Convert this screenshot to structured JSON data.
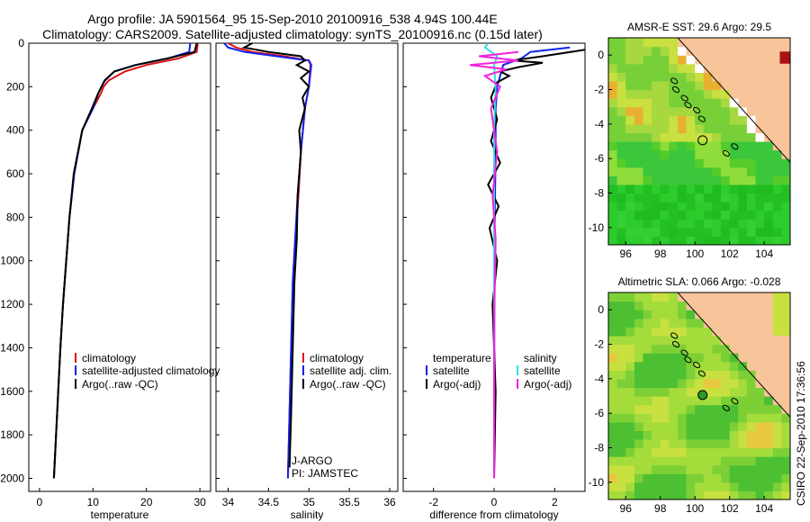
{
  "header": {
    "title_line1": "Argo profile: JA 5901564_95 15-Sep-2010 20100916_538 4.94S 100.44E",
    "title_line2": "Climatology: CARS2009. Satellite-adjusted climatology: synTS_20100916.nc (0.15d later)"
  },
  "side_stamp": "CSIRO 22-Sep-2010 17:36:56",
  "colors": {
    "climatology": "#dd1111",
    "satellite": "#1122ee",
    "argo": "#000000",
    "argo_adj": "#ee22dd",
    "sal_sat": "#33dddd",
    "land": "#f8c49a"
  },
  "chart_data": [
    {
      "type": "line",
      "name": "temperature-panel",
      "xlabel": "temperature",
      "ylabel": "",
      "xlim": [
        -2,
        32
      ],
      "ylim": [
        2060,
        0
      ],
      "xticks": [
        "0",
        "10",
        "20",
        "30"
      ],
      "xtick_values": [
        0,
        10,
        20,
        30
      ],
      "yticks": [
        "0",
        "200",
        "400",
        "600",
        "800",
        "1000",
        "1200",
        "1400",
        "1600",
        "1800",
        "2000"
      ],
      "ytick_values": [
        0,
        200,
        400,
        600,
        800,
        1000,
        1200,
        1400,
        1600,
        1800,
        2000
      ],
      "legend": [
        "climatology",
        "satellite-adjusted climatology",
        "Argo(..raw -QC)"
      ],
      "series": [
        {
          "name": "climatology",
          "color": "#dd1111",
          "x": [
            29.6,
            29.4,
            26,
            20,
            16,
            13,
            12,
            11.5,
            10,
            8,
            6.5,
            5.6,
            5,
            4.4,
            3.9,
            3.3,
            2.7
          ],
          "y": [
            0,
            40,
            70,
            100,
            130,
            170,
            200,
            230,
            300,
            400,
            600,
            800,
            1000,
            1200,
            1400,
            1700,
            2000
          ]
        },
        {
          "name": "satellite-adjusted climatology",
          "color": "#1122ee",
          "x": [
            28.2,
            28,
            24,
            18,
            14,
            12.3,
            11.6,
            11,
            10,
            8,
            6.5,
            5.6,
            5,
            4.4,
            3.9,
            3.3,
            2.7
          ],
          "y": [
            0,
            40,
            70,
            100,
            130,
            170,
            200,
            230,
            300,
            400,
            600,
            800,
            1000,
            1200,
            1400,
            1700,
            2000
          ]
        },
        {
          "name": "Argo(..raw -QC)",
          "color": "#000000",
          "x": [
            29.4,
            29,
            24,
            18,
            14,
            12.2,
            11.6,
            11,
            9.8,
            8,
            6.4,
            5.6,
            5,
            4.4,
            3.9,
            3.3,
            2.7
          ],
          "y": [
            0,
            40,
            70,
            100,
            130,
            170,
            200,
            230,
            300,
            400,
            600,
            800,
            1000,
            1200,
            1400,
            1700,
            2000
          ]
        }
      ]
    },
    {
      "type": "line",
      "name": "salinity-panel",
      "xlabel": "salinity",
      "ylabel": "",
      "xlim": [
        33.85,
        36.1
      ],
      "ylim": [
        2060,
        0
      ],
      "xticks": [
        "34",
        "34.5",
        "35",
        "35.5",
        "36"
      ],
      "xtick_values": [
        34,
        34.5,
        35,
        35.5,
        36
      ],
      "legend": [
        "climatology",
        "satellite adj. clim.",
        "Argo(..raw -QC)"
      ],
      "annotations": [
        "J-ARGO",
        "PI: JAMSTEC"
      ],
      "series": [
        {
          "name": "climatology",
          "color": "#dd1111",
          "x": [
            34.0,
            34.1,
            34.3,
            34.7,
            35.0,
            35.02,
            35.0,
            34.95,
            34.9,
            34.87,
            34.83,
            34.8,
            34.78,
            34.76,
            34.74
          ],
          "y": [
            0,
            20,
            40,
            60,
            80,
            100,
            200,
            300,
            500,
            700,
            900,
            1100,
            1400,
            1700,
            2000
          ]
        },
        {
          "name": "satellite adj. clim.",
          "color": "#1122ee",
          "x": [
            33.95,
            34.0,
            34.2,
            34.6,
            35.0,
            35.03,
            35.0,
            34.95,
            34.9,
            34.86,
            34.83,
            34.8,
            34.78,
            34.76,
            34.74
          ],
          "y": [
            0,
            20,
            40,
            60,
            80,
            100,
            200,
            300,
            500,
            700,
            900,
            1100,
            1400,
            1700,
            2000
          ]
        },
        {
          "name": "Argo(..raw -QC)",
          "color": "#000000",
          "x": [
            34.3,
            34.2,
            34.5,
            34.9,
            34.95,
            34.85,
            35.0,
            34.9,
            35.0,
            34.92,
            34.95,
            34.88,
            34.9,
            34.86,
            34.85,
            34.82,
            34.8,
            34.78,
            34.76
          ],
          "y": [
            0,
            20,
            40,
            60,
            80,
            100,
            130,
            160,
            200,
            250,
            300,
            400,
            500,
            700,
            900,
            1100,
            1400,
            1700,
            1950
          ]
        }
      ]
    },
    {
      "type": "line",
      "name": "difference-panel",
      "xlabel": "difference from climatology",
      "ylabel": "",
      "xlim": [
        -3,
        3
      ],
      "ylim": [
        2060,
        0
      ],
      "xticks": [
        "-2",
        "0",
        "2"
      ],
      "xtick_values": [
        -2,
        0,
        2
      ],
      "legend": [
        "temperature",
        "satellite",
        "Argo(-adj)",
        "salinity",
        "satellite",
        "Argo(-adj)"
      ],
      "series": [
        {
          "name": "temperature satellite",
          "color": "#1122ee",
          "x": [
            2.5,
            1.2,
            0.9,
            0.3,
            0.2,
            0.1,
            0.05,
            0.05,
            0.02,
            0.01,
            0
          ],
          "y": [
            20,
            40,
            70,
            100,
            150,
            200,
            300,
            500,
            800,
            1200,
            2000
          ]
        },
        {
          "name": "temperature Argo(-adj)",
          "color": "#000000",
          "x": [
            3,
            1.6,
            0.6,
            1.6,
            0.8,
            0.2,
            0.5,
            0.1,
            -0.1,
            0.1,
            -0.1,
            0.2,
            -0.2,
            0.15,
            -0.15,
            0.1,
            -0.05,
            0.05,
            0
          ],
          "y": [
            30,
            60,
            80,
            90,
            110,
            130,
            150,
            180,
            250,
            350,
            450,
            550,
            650,
            750,
            850,
            1000,
            1200,
            1600,
            2000
          ]
        },
        {
          "name": "salinity satellite",
          "color": "#33dddd",
          "x": [
            -0.2,
            -0.3,
            0.1,
            0,
            0.05,
            0,
            0,
            0,
            0
          ],
          "y": [
            0,
            20,
            60,
            100,
            200,
            400,
            800,
            1400,
            2000
          ]
        },
        {
          "name": "salinity Argo(-adj)",
          "color": "#ee22dd",
          "x": [
            0.8,
            -0.5,
            0.8,
            -0.8,
            0.4,
            -0.3,
            0.2,
            -0.1,
            0.1,
            -0.05,
            0.05,
            0,
            0
          ],
          "y": [
            40,
            60,
            80,
            100,
            120,
            150,
            200,
            300,
            500,
            700,
            900,
            1300,
            2000
          ]
        }
      ]
    },
    {
      "type": "heatmap",
      "name": "sst-map",
      "title": "AMSR-E SST: 29.6 Argo: 29.5",
      "xlim": [
        95,
        105.5
      ],
      "ylim": [
        -11,
        1
      ],
      "xticks": [
        "96",
        "98",
        "100",
        "102",
        "104"
      ],
      "xtick_values": [
        96,
        98,
        100,
        102,
        104
      ],
      "yticks": [
        "0",
        "-2",
        "-4",
        "-6",
        "-8",
        "-10"
      ],
      "ytick_values": [
        0,
        -2,
        -4,
        -6,
        -8,
        -10
      ],
      "argo_position": {
        "lon": 100.44,
        "lat": -4.94
      }
    },
    {
      "type": "heatmap",
      "name": "sla-map",
      "title": "Altimetric SLA: 0.066 Argo: -0.028",
      "xlim": [
        95,
        105.5
      ],
      "ylim": [
        -11,
        1
      ],
      "xticks": [
        "96",
        "98",
        "100",
        "102",
        "104"
      ],
      "xtick_values": [
        96,
        98,
        100,
        102,
        104
      ],
      "yticks": [
        "0",
        "-2",
        "-4",
        "-6",
        "-8",
        "-10"
      ],
      "ytick_values": [
        0,
        -2,
        -4,
        -6,
        -8,
        -10
      ],
      "argo_position": {
        "lon": 100.44,
        "lat": -4.94
      }
    }
  ]
}
